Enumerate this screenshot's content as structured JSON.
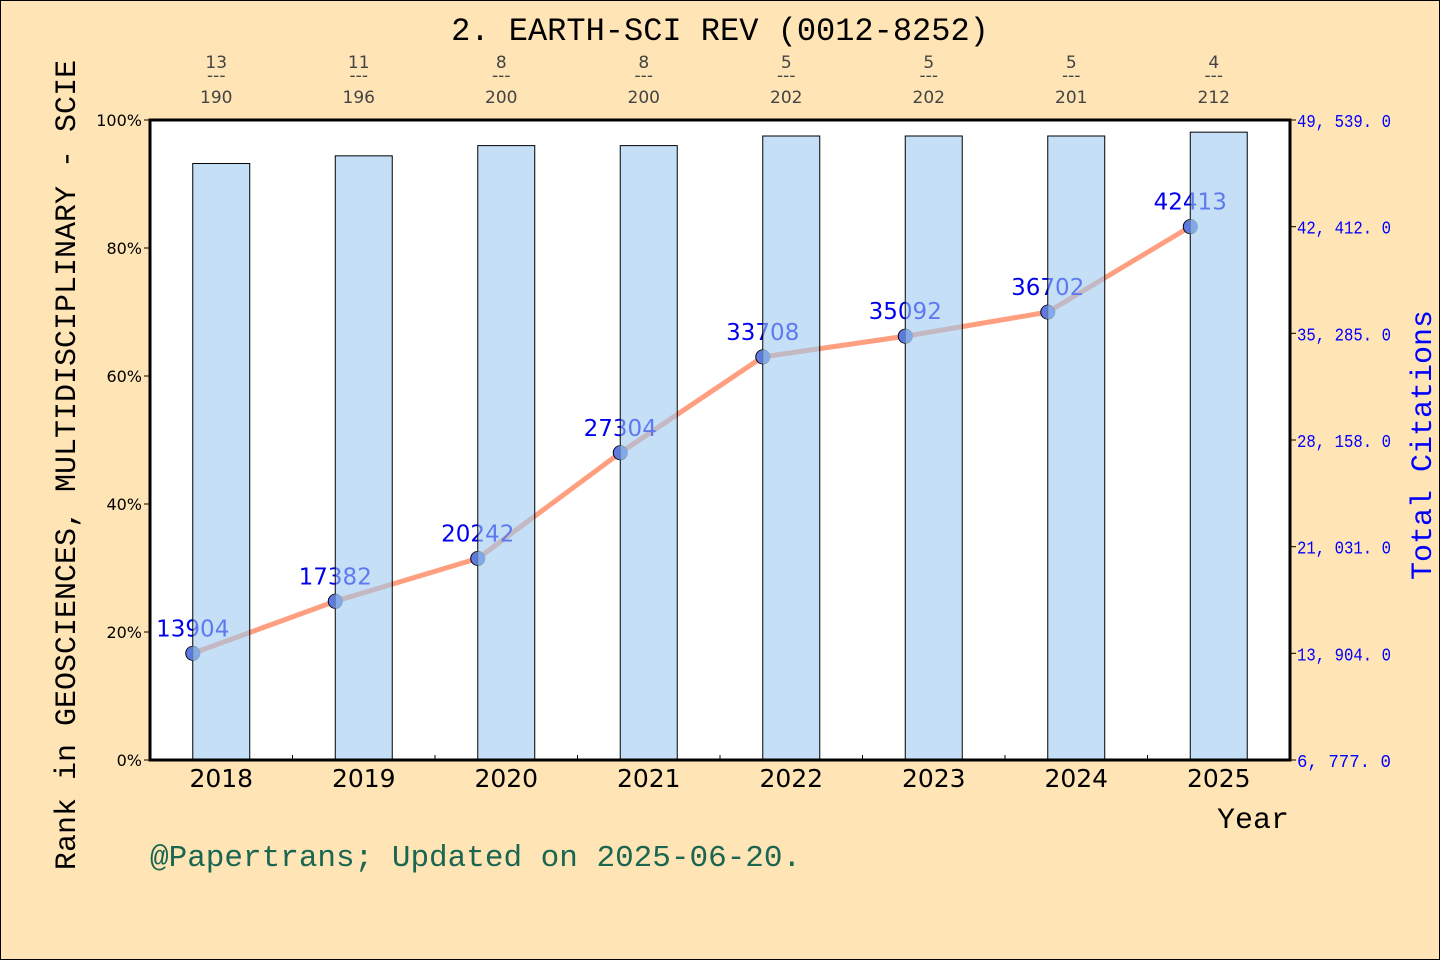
{
  "chart_data": {
    "type": "bar+line",
    "title": "2. EARTH-SCI REV (0012-8252)",
    "xlabel": "Year",
    "ylabel_left": "Rank in GEOSCIENCES, MULTIDISCIPLINARY - SCIE",
    "ylabel_right": "Total Citations",
    "categories": [
      "2018",
      "2019",
      "2020",
      "2021",
      "2022",
      "2023",
      "2024",
      "2025"
    ],
    "rank_labels": [
      {
        "rank": "13",
        "total": "190"
      },
      {
        "rank": "11",
        "total": "196"
      },
      {
        "rank": "8",
        "total": "200"
      },
      {
        "rank": "8",
        "total": "200"
      },
      {
        "rank": "5",
        "total": "202"
      },
      {
        "rank": "5",
        "total": "202"
      },
      {
        "rank": "5",
        "total": "201"
      },
      {
        "rank": "4",
        "total": "212"
      }
    ],
    "bar_values_percent": [
      93.2,
      94.4,
      96.0,
      96.0,
      97.5,
      97.5,
      97.5,
      98.1
    ],
    "citations": [
      13904,
      17382,
      20242,
      27304,
      33708,
      35092,
      36702,
      42413
    ],
    "left_ylim": [
      0,
      100
    ],
    "left_ticks": [
      "0%",
      "20%",
      "40%",
      "60%",
      "80%",
      "100%"
    ],
    "right_ylim": [
      6777,
      49539
    ],
    "right_ticks": [
      "6, 777. 0",
      "13, 904. 0",
      "21, 031. 0",
      "28, 158. 0",
      "35, 285. 0",
      "42, 412. 0",
      "49, 539. 0"
    ],
    "grid": false,
    "colors": {
      "background": "#ffe4b5",
      "bar": "#c5e0f7",
      "line": "#ff9f7f",
      "point": "#0000cc",
      "right_axis": "#0000ff",
      "footer": "#1a6650"
    }
  },
  "footer": "@Papertrans; Updated on 2025-06-20."
}
